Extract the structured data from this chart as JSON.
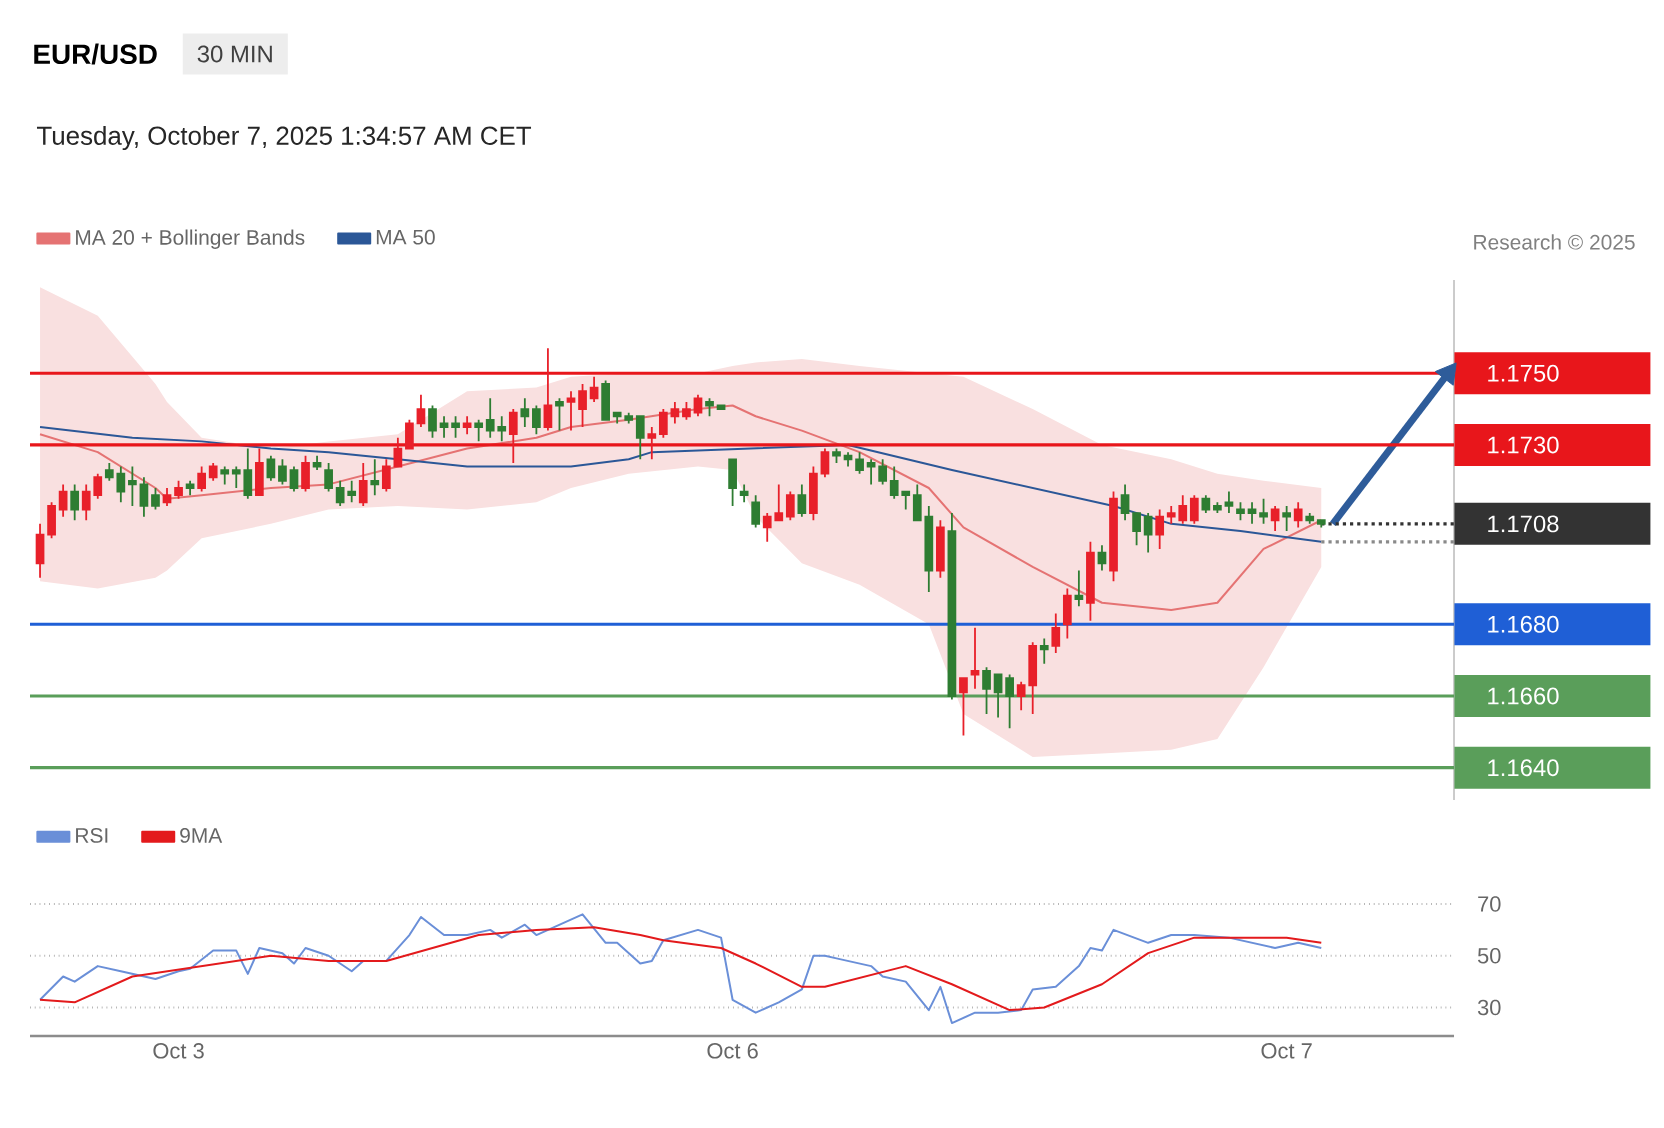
{
  "chart_data": [
    {
      "type": "candlestick",
      "title": "EUR/USD",
      "subtitle": "30 MIN",
      "annotations": [
        "Tuesday, October 7, 2025 1:34:57 AM CET",
        "Research © 2025"
      ],
      "categories": [
        null,
        null,
        null,
        null,
        null,
        null,
        null,
        null,
        null,
        null,
        null,
        null,
        null,
        null,
        null,
        null,
        null,
        null,
        null,
        null,
        null,
        null,
        null,
        null,
        null,
        null,
        null,
        null,
        null,
        null,
        null,
        null,
        null,
        null,
        null,
        null,
        null,
        null,
        null,
        null,
        null,
        null,
        null,
        null,
        null,
        null,
        null,
        null,
        null,
        null,
        null,
        null,
        null,
        null,
        null,
        null,
        null,
        null,
        null,
        null,
        null,
        null,
        null,
        null,
        null,
        null,
        null,
        null,
        null,
        null,
        null,
        null,
        null,
        null,
        null,
        null,
        null,
        null,
        null,
        null,
        null,
        null,
        null,
        null,
        null,
        null,
        null,
        null,
        null,
        null,
        null,
        null,
        null,
        null,
        null,
        null,
        null,
        null,
        null,
        null,
        null,
        null,
        null,
        null,
        null,
        null,
        null,
        null,
        null,
        null,
        null,
        null,
        null,
        null,
        null,
        null,
        null,
        null,
        null,
        null,
        null,
        null,
        null
      ],
      "ohlc": [
        [
          1.1697,
          1.1708,
          1.1693,
          1.1705
        ],
        [
          1.1705,
          1.1714,
          1.1704,
          1.1713
        ],
        [
          1.1712,
          1.1719,
          1.171,
          1.1717
        ],
        [
          1.1717,
          1.1719,
          1.1709,
          1.1712
        ],
        [
          1.1712,
          1.1719,
          1.1709,
          1.1717
        ],
        [
          1.1716,
          1.1722,
          1.1715,
          1.1721
        ],
        [
          1.1723,
          1.1725,
          1.172,
          1.1721
        ],
        [
          1.1722,
          1.1724,
          1.1714,
          1.1717
        ],
        [
          1.172,
          1.1724,
          1.1713,
          1.1719
        ],
        [
          1.1719,
          1.1721,
          1.171,
          1.1713
        ],
        [
          1.1716,
          1.1718,
          1.1712,
          1.1713
        ],
        [
          1.1714,
          1.1718,
          1.1713,
          1.1716
        ],
        [
          1.1716,
          1.172,
          1.1715,
          1.1718
        ],
        [
          1.1719,
          1.172,
          1.1716,
          1.1718
        ],
        [
          1.1718,
          1.1724,
          1.1717,
          1.1722
        ],
        [
          1.1721,
          1.1725,
          1.172,
          1.1724
        ],
        [
          1.1723,
          1.1724,
          1.1719,
          1.1722
        ],
        [
          1.1723,
          1.1724,
          1.1718,
          1.1722
        ],
        [
          1.1723,
          1.1729,
          1.1715,
          1.1716
        ],
        [
          1.1716,
          1.1729,
          1.1716,
          1.1725
        ],
        [
          1.1726,
          1.1727,
          1.172,
          1.1721
        ],
        [
          1.1724,
          1.1726,
          1.1719,
          1.172
        ],
        [
          1.1723,
          1.1724,
          1.1717,
          1.1718
        ],
        [
          1.1718,
          1.1727,
          1.1717,
          1.1725
        ],
        [
          1.1725,
          1.1727,
          1.1723,
          1.1724
        ],
        [
          1.1723,
          1.1725,
          1.1717,
          1.1718
        ],
        [
          1.1718,
          1.172,
          1.1713,
          1.1714
        ],
        [
          1.1717,
          1.172,
          1.1714,
          1.1716
        ],
        [
          1.1714,
          1.1725,
          1.1713,
          1.172
        ],
        [
          1.172,
          1.1726,
          1.1716,
          1.1719
        ],
        [
          1.1718,
          1.1726,
          1.1717,
          1.1724
        ],
        [
          1.1724,
          1.1732,
          1.1724,
          1.1729
        ],
        [
          1.1729,
          1.1737,
          1.1729,
          1.1736
        ],
        [
          1.1736,
          1.1744,
          1.1735,
          1.174
        ],
        [
          1.174,
          1.1741,
          1.1732,
          1.1734
        ],
        [
          1.1736,
          1.1738,
          1.1732,
          1.1735
        ],
        [
          1.1736,
          1.1738,
          1.1732,
          1.1735
        ],
        [
          1.1735,
          1.1738,
          1.1733,
          1.1736
        ],
        [
          1.1736,
          1.1737,
          1.1731,
          1.1735
        ],
        [
          1.1737,
          1.1743,
          1.1732,
          1.1734
        ],
        [
          1.1735,
          1.1738,
          1.1731,
          1.1734
        ],
        [
          1.1733,
          1.174,
          1.1725,
          1.1739
        ],
        [
          1.174,
          1.1743,
          1.1735,
          1.1738
        ],
        [
          1.174,
          1.1741,
          1.1733,
          1.1735
        ],
        [
          1.1735,
          1.1757,
          1.1734,
          1.1741
        ],
        [
          1.1742,
          1.1743,
          1.1734,
          1.1741
        ],
        [
          1.1742,
          1.1745,
          1.1734,
          1.1743
        ],
        [
          1.174,
          1.1747,
          1.1735,
          1.1745
        ],
        [
          1.1743,
          1.1749,
          1.1742,
          1.1746
        ],
        [
          1.1747,
          1.1748,
          1.1737,
          1.1737
        ],
        [
          1.1739,
          1.1739,
          1.1736,
          1.1738
        ],
        [
          1.1738,
          1.1739,
          1.1736,
          1.1737
        ],
        [
          1.1738,
          1.1738,
          1.1726,
          1.1732
        ],
        [
          1.1732,
          1.1735,
          1.1726,
          1.1733
        ],
        [
          1.1733,
          1.174,
          1.1732,
          1.1739
        ],
        [
          1.1738,
          1.1742,
          1.1736,
          1.174
        ],
        [
          1.1738,
          1.1742,
          1.1737,
          1.174
        ],
        [
          1.1739,
          1.1744,
          1.1738,
          1.1743
        ],
        [
          1.1742,
          1.1743,
          1.1738,
          1.1741
        ],
        [
          1.1741,
          1.1741,
          1.174,
          1.174
        ],
        [
          1.1726,
          1.1726,
          1.1713,
          1.1718
        ],
        [
          1.1717,
          1.1719,
          1.1714,
          1.1716
        ],
        [
          1.1714,
          1.1716,
          1.1707,
          1.1708
        ],
        [
          1.1707,
          1.1711,
          1.1703,
          1.171
        ],
        [
          1.1709,
          1.1719,
          1.1709,
          1.1711
        ],
        [
          1.171,
          1.1717,
          1.1709,
          1.1716
        ],
        [
          1.1716,
          1.1719,
          1.171,
          1.1711
        ],
        [
          1.1711,
          1.1724,
          1.1709,
          1.1722
        ],
        [
          1.1722,
          1.1729,
          1.1721,
          1.1728
        ],
        [
          1.1728,
          1.1729,
          1.1725,
          1.1727
        ],
        [
          1.1727,
          1.1728,
          1.1724,
          1.1726
        ],
        [
          1.1726,
          1.1728,
          1.1722,
          1.1723
        ],
        [
          1.1725,
          1.1726,
          1.1719,
          1.1724
        ],
        [
          1.1724,
          1.1726,
          1.1719,
          1.172
        ],
        [
          1.172,
          1.1724,
          1.1715,
          1.1716
        ],
        [
          1.1717,
          1.1717,
          1.1712,
          1.1716
        ],
        [
          1.1716,
          1.1719,
          1.1709,
          1.1709
        ],
        [
          1.171,
          1.1713,
          1.1689,
          1.1695
        ],
        [
          1.1695,
          1.1709,
          1.1693,
          1.1707
        ],
        [
          1.1706,
          1.1711,
          1.1659,
          1.166
        ],
        [
          1.1661,
          1.1665,
          1.1649,
          1.1665
        ],
        [
          1.1666,
          1.1679,
          1.1662,
          1.1667
        ],
        [
          1.1667,
          1.1668,
          1.1655,
          1.1662
        ],
        [
          1.1666,
          1.1666,
          1.1654,
          1.1661
        ],
        [
          1.1665,
          1.1666,
          1.1651,
          1.166
        ],
        [
          1.166,
          1.1664,
          1.1656,
          1.1663
        ],
        [
          1.1663,
          1.1675,
          1.1655,
          1.1674
        ],
        [
          1.1674,
          1.1676,
          1.1669,
          1.1673
        ],
        [
          1.1674,
          1.1683,
          1.1672,
          1.1679
        ],
        [
          1.168,
          1.169,
          1.1676,
          1.1688
        ],
        [
          1.1688,
          1.1695,
          1.1685,
          1.1687
        ],
        [
          1.1686,
          1.1703,
          1.1681,
          1.17
        ],
        [
          1.17,
          1.1702,
          1.1695,
          1.1697
        ],
        [
          1.1695,
          1.1717,
          1.1692,
          1.1715
        ],
        [
          1.1716,
          1.1719,
          1.1709,
          1.1711
        ],
        [
          1.1711,
          1.1711,
          1.1702,
          1.1706
        ],
        [
          1.171,
          1.1711,
          1.17,
          1.1705
        ],
        [
          1.1705,
          1.1712,
          1.1701,
          1.171
        ],
        [
          1.171,
          1.1713,
          1.1708,
          1.1711
        ],
        [
          1.1709,
          1.1716,
          1.1708,
          1.1713
        ],
        [
          1.1709,
          1.1716,
          1.1708,
          1.1715
        ],
        [
          1.1715,
          1.1716,
          1.1711,
          1.1712
        ],
        [
          1.1713,
          1.1714,
          1.1711,
          1.1712
        ],
        [
          1.1714,
          1.1717,
          1.1711,
          1.1713
        ],
        [
          1.1712,
          1.1714,
          1.1709,
          1.1711
        ],
        [
          1.1712,
          1.1714,
          1.1708,
          1.1711
        ],
        [
          1.1711,
          1.1715,
          1.1708,
          1.171
        ],
        [
          1.1709,
          1.1713,
          1.1706,
          1.1712
        ],
        [
          1.1711,
          1.1713,
          1.1706,
          1.171
        ],
        [
          1.1709,
          1.1714,
          1.1707,
          1.1712
        ],
        [
          1.171,
          1.1711,
          1.1708,
          1.1709
        ],
        [
          1.1709,
          1.1709,
          1.1707,
          1.1708
        ],
        null,
        null,
        null,
        null,
        null,
        null,
        null,
        null,
        null,
        null,
        null
      ],
      "colors": [
        "#e8202a",
        "#e8202a",
        "#e8202a",
        "#2e7d32",
        "#e8202a",
        "#e8202a",
        "#2e7d32",
        "#2e7d32",
        "#2e7d32",
        "#2e7d32",
        "#2e7d32",
        "#e8202a",
        "#e8202a",
        "#2e7d32",
        "#e8202a",
        "#e8202a",
        "#2e7d32",
        "#2e7d32",
        "#2e7d32",
        "#e8202a",
        "#2e7d32",
        "#2e7d32",
        "#2e7d32",
        "#e8202a",
        "#2e7d32",
        "#2e7d32",
        "#2e7d32",
        "#2e7d32",
        "#e8202a",
        "#2e7d32",
        "#e8202a",
        "#e8202a",
        "#e8202a",
        "#e8202a",
        "#2e7d32",
        "#2e7d32",
        "#2e7d32",
        "#e8202a",
        "#2e7d32",
        "#2e7d32",
        "#2e7d32",
        "#e8202a",
        "#2e7d32",
        "#2e7d32",
        "#e8202a",
        "#2e7d32",
        "#e8202a",
        "#e8202a",
        "#e8202a",
        "#2e7d32",
        "#2e7d32",
        "#2e7d32",
        "#2e7d32",
        "#e8202a",
        "#e8202a",
        "#e8202a",
        "#e8202a",
        "#e8202a",
        "#2e7d32",
        "#2e7d32",
        "#2e7d32",
        "#2e7d32",
        "#2e7d32",
        "#e8202a",
        "#e8202a",
        "#e8202a",
        "#2e7d32",
        "#e8202a",
        "#e8202a",
        "#2e7d32",
        "#2e7d32",
        "#2e7d32",
        "#2e7d32",
        "#2e7d32",
        "#2e7d32",
        "#2e7d32",
        "#2e7d32",
        "#2e7d32",
        "#e8202a",
        "#2e7d32",
        "#e8202a",
        "#e8202a",
        "#2e7d32",
        "#2e7d32",
        "#2e7d32",
        "#e8202a",
        "#e8202a",
        "#2e7d32",
        "#e8202a",
        "#e8202a",
        "#2e7d32",
        "#e8202a",
        "#2e7d32",
        "#e8202a",
        "#2e7d32",
        "#2e7d32",
        "#2e7d32",
        "#e8202a",
        "#e8202a",
        "#e8202a",
        "#e8202a",
        "#2e7d32",
        "#2e7d32",
        "#2e7d32",
        "#2e7d32",
        "#2e7d32",
        "#2e7d32",
        "#e8202a",
        "#2e7d32",
        "#e8202a",
        "#2e7d32",
        "#2e7d32",
        null,
        null,
        null,
        null,
        null,
        null,
        null,
        null,
        null,
        null,
        null
      ],
      "series": [
        {
          "name": "MA 20 + Bollinger Bands",
          "type": "line",
          "color": "#e57373",
          "values": [
            1.1733,
            null,
            null,
            null,
            null,
            1.1728,
            null,
            null,
            null,
            null,
            1.1718,
            1.1715,
            null,
            null,
            1.1716,
            null,
            null,
            null,
            null,
            null,
            1.1718,
            null,
            null,
            null,
            null,
            1.1719,
            null,
            null,
            null,
            null,
            null,
            1.1724,
            null,
            null,
            null,
            null,
            null,
            1.1729,
            null,
            null,
            null,
            null,
            null,
            1.1732,
            null,
            null,
            1.1735,
            null,
            null,
            null,
            null,
            1.1737,
            null,
            null,
            null,
            null,
            null,
            1.174,
            null,
            null,
            1.1741,
            null,
            1.1738,
            null,
            null,
            null,
            1.1734,
            null,
            null,
            null,
            null,
            1.1728,
            null,
            null,
            null,
            null,
            null,
            1.1718,
            null,
            null,
            1.1707,
            null,
            null,
            null,
            null,
            null,
            1.1696,
            null,
            null,
            null,
            null,
            null,
            1.1686,
            null,
            null,
            null,
            null,
            null,
            1.1684,
            null,
            null,
            null,
            1.1686,
            null,
            null,
            null,
            1.1701,
            null,
            null,
            null,
            null,
            1.1709,
            null,
            null,
            null,
            null,
            null,
            null,
            null,
            null,
            null,
            null,
            null
          ],
          "upper": [
            1.1774,
            null,
            null,
            null,
            null,
            1.1766,
            null,
            null,
            null,
            null,
            1.1747,
            1.1742,
            null,
            null,
            1.1732,
            null,
            null,
            null,
            null,
            null,
            1.1729,
            null,
            null,
            null,
            null,
            1.1731,
            null,
            null,
            null,
            null,
            null,
            1.1733,
            null,
            null,
            null,
            null,
            null,
            1.1745,
            null,
            null,
            null,
            null,
            null,
            1.1746,
            null,
            null,
            1.1749,
            null,
            null,
            null,
            null,
            1.175,
            null,
            null,
            null,
            null,
            null,
            1.175,
            null,
            null,
            1.1752,
            null,
            1.1753,
            null,
            null,
            null,
            1.1754,
            null,
            null,
            null,
            null,
            1.1752,
            null,
            null,
            null,
            null,
            null,
            1.175,
            null,
            null,
            1.1749,
            null,
            null,
            null,
            null,
            null,
            1.174,
            null,
            null,
            null,
            null,
            null,
            1.173,
            null,
            null,
            null,
            null,
            null,
            1.1726,
            null,
            null,
            null,
            1.1722,
            null,
            null,
            null,
            1.172,
            null,
            null,
            null,
            null,
            1.1718,
            null,
            null,
            null,
            null,
            null,
            null,
            null,
            null,
            null,
            null,
            null
          ],
          "lower": [
            1.1692,
            null,
            null,
            null,
            null,
            1.169,
            null,
            null,
            null,
            null,
            1.1693,
            1.1695,
            null,
            null,
            1.1704,
            null,
            null,
            null,
            null,
            null,
            1.1708,
            null,
            null,
            null,
            null,
            1.1712,
            null,
            null,
            null,
            null,
            null,
            1.1713,
            null,
            null,
            null,
            null,
            null,
            1.1712,
            null,
            null,
            null,
            null,
            null,
            1.1714,
            null,
            null,
            1.1718,
            null,
            null,
            null,
            null,
            1.1722,
            null,
            null,
            null,
            null,
            null,
            1.1724,
            null,
            null,
            1.1723,
            null,
            1.171,
            null,
            null,
            null,
            1.1697,
            null,
            null,
            null,
            null,
            1.1691,
            null,
            null,
            null,
            null,
            null,
            1.168,
            null,
            null,
            1.1655,
            null,
            null,
            null,
            null,
            null,
            1.1643,
            null,
            null,
            null,
            null,
            null,
            1.1644,
            null,
            null,
            null,
            null,
            null,
            1.1645,
            null,
            null,
            null,
            1.1648,
            null,
            null,
            null,
            1.1668,
            null,
            null,
            null,
            null,
            1.1696,
            null,
            null,
            null,
            null,
            null,
            null,
            null,
            null,
            null,
            null,
            null
          ]
        },
        {
          "name": "MA 50",
          "type": "line",
          "color": "#2b5797",
          "values": [
            1.1735,
            null,
            null,
            null,
            null,
            null,
            null,
            null,
            1.1732,
            null,
            null,
            null,
            null,
            null,
            1.1731,
            null,
            null,
            null,
            null,
            null,
            1.1729,
            null,
            null,
            null,
            null,
            1.1728,
            null,
            null,
            null,
            null,
            null,
            1.1726,
            null,
            null,
            null,
            null,
            null,
            1.1724,
            null,
            null,
            null,
            null,
            null,
            1.1724,
            null,
            null,
            1.1724,
            null,
            null,
            null,
            null,
            1.1726,
            null,
            1.1728,
            null,
            null,
            null,
            null,
            null,
            null,
            null,
            null,
            null,
            null,
            null,
            null,
            null,
            null,
            null,
            null,
            1.173,
            null,
            null,
            null,
            null,
            null,
            null,
            null,
            null,
            1.1723,
            null,
            null,
            null,
            null,
            null,
            null,
            1.1718,
            null,
            null,
            null,
            null,
            null,
            null,
            1.1713,
            null,
            null,
            null,
            null,
            1.1708,
            null,
            null,
            null,
            null,
            null,
            1.1706,
            null,
            null,
            null,
            null,
            null,
            null,
            1.1703,
            null,
            null,
            null,
            null,
            null,
            null,
            null,
            null,
            null,
            null,
            null
          ]
        },
        {
          "type": "line",
          "color": "#2e5c9a",
          "values": [
            null,
            null,
            null,
            null,
            null,
            null,
            null,
            null,
            null,
            null,
            null,
            null,
            null,
            null,
            null,
            null,
            null,
            null,
            null,
            null,
            null,
            null,
            null,
            null,
            null,
            null,
            null,
            null,
            null,
            null,
            null,
            null,
            null,
            null,
            null,
            null,
            null,
            null,
            null,
            null,
            null,
            null,
            null,
            null,
            null,
            null,
            null,
            null,
            null,
            null,
            null,
            null,
            null,
            null,
            null,
            null,
            null,
            null,
            null,
            null,
            null,
            null,
            null,
            null,
            null,
            null,
            null,
            null,
            null,
            null,
            null,
            null,
            null,
            null,
            null,
            null,
            null,
            null,
            null,
            null,
            null,
            null,
            null,
            null,
            null,
            null,
            null,
            null,
            null,
            null,
            null,
            null,
            null,
            null,
            null,
            null,
            null,
            null,
            null,
            null,
            null,
            null,
            null,
            null,
            null,
            null,
            null,
            null,
            null,
            null,
            null,
            null,
            1.1708,
            null,
            null,
            null,
            null,
            null,
            null,
            null,
            null,
            null,
            1.175
          ]
        }
      ],
      "ref_lines": [
        {
          "axis": "y",
          "value": 1.175,
          "color": "#e8161b"
        },
        {
          "axis": "y",
          "value": 1.173,
          "color": "#e8161b"
        },
        {
          "axis": "y",
          "value": 1.1708,
          "color": "#333333",
          "line_style": "dotted"
        },
        {
          "axis": "y",
          "value": 1.1703,
          "color": "#8a8a8a",
          "line_style": "dotted"
        },
        {
          "axis": "y",
          "value": 1.168,
          "color": "#1f5fd6"
        },
        {
          "axis": "y",
          "value": 1.166,
          "color": "#5a9e5a"
        },
        {
          "axis": "y",
          "value": 1.164,
          "color": "#5a9e5a"
        }
      ],
      "ylim": [
        1.1631,
        1.1776
      ],
      "yticks": [
        {
          "value": 1.175,
          "label": "1.1750"
        },
        {
          "value": 1.173,
          "label": "1.1730"
        },
        {
          "value": 1.1708,
          "label": "1.1708"
        },
        {
          "value": 1.168,
          "label": "1.1680"
        },
        {
          "value": 1.166,
          "label": "1.1660"
        },
        {
          "value": 1.164,
          "label": "1.1640"
        }
      ],
      "legend": "top left",
      "tick_labels": "y"
    },
    {
      "type": "line",
      "categories": [
        null,
        null,
        null,
        null,
        null,
        null,
        null,
        null,
        null,
        null,
        null,
        null,
        "Oct 3",
        null,
        null,
        null,
        null,
        null,
        null,
        null,
        null,
        null,
        null,
        null,
        null,
        null,
        null,
        null,
        null,
        null,
        null,
        null,
        null,
        null,
        null,
        null,
        null,
        null,
        null,
        null,
        null,
        null,
        null,
        null,
        null,
        null,
        null,
        null,
        null,
        null,
        null,
        null,
        null,
        null,
        null,
        null,
        null,
        null,
        null,
        null,
        "Oct 6",
        null,
        null,
        null,
        null,
        null,
        null,
        null,
        null,
        null,
        null,
        null,
        null,
        null,
        null,
        null,
        null,
        null,
        null,
        null,
        null,
        null,
        null,
        null,
        null,
        null,
        null,
        null,
        null,
        null,
        null,
        null,
        null,
        null,
        null,
        null,
        null,
        null,
        null,
        null,
        null,
        null,
        null,
        null,
        null,
        null,
        null,
        null,
        "Oct 7",
        null,
        null,
        null,
        null,
        null,
        null,
        null,
        null,
        null,
        null,
        null,
        null,
        null,
        null
      ],
      "ylim": [
        19,
        70
      ],
      "yticks": [
        30,
        50,
        70
      ],
      "grid": "y",
      "legend": "top left",
      "series": [
        {
          "name": "RSI",
          "type": "line",
          "color": "#6a8fd8",
          "values": [
            33,
            null,
            42,
            40,
            null,
            46,
            null,
            44,
            null,
            null,
            41,
            null,
            44,
            45,
            null,
            52,
            null,
            52,
            43,
            53,
            null,
            51,
            47,
            53,
            null,
            50,
            null,
            44,
            48,
            null,
            48,
            null,
            58,
            65,
            null,
            58,
            null,
            58,
            null,
            60,
            57,
            null,
            62,
            58,
            null,
            62,
            null,
            66,
            null,
            55,
            55,
            null,
            47,
            48,
            56,
            null,
            null,
            60,
            null,
            57,
            33,
            null,
            28,
            null,
            32,
            null,
            37,
            50,
            50,
            49,
            null,
            null,
            46,
            42,
            null,
            40,
            null,
            29,
            38,
            24,
            null,
            28,
            null,
            28,
            null,
            29,
            37,
            null,
            38,
            null,
            46,
            53,
            52,
            60,
            null,
            null,
            55,
            null,
            58,
            null,
            58,
            null,
            null,
            57,
            null,
            null,
            null,
            53,
            null,
            55,
            null,
            53,
            null,
            null,
            null,
            null,
            null,
            null,
            null,
            null,
            null,
            null,
            null
          ]
        },
        {
          "name": "9MA",
          "type": "line",
          "color": "#e31a1c",
          "values": [
            33,
            null,
            null,
            32,
            null,
            null,
            null,
            null,
            42,
            null,
            null,
            null,
            null,
            null,
            46,
            null,
            null,
            null,
            null,
            null,
            50,
            null,
            null,
            null,
            null,
            48,
            null,
            null,
            null,
            null,
            48,
            null,
            null,
            null,
            53,
            null,
            null,
            null,
            58,
            null,
            null,
            null,
            null,
            60,
            null,
            null,
            null,
            null,
            61,
            null,
            null,
            null,
            58,
            null,
            56,
            null,
            null,
            null,
            null,
            53,
            null,
            null,
            47,
            null,
            null,
            null,
            38,
            null,
            38,
            null,
            null,
            null,
            null,
            null,
            null,
            46,
            null,
            null,
            null,
            39,
            null,
            null,
            null,
            null,
            29,
            null,
            null,
            30,
            null,
            null,
            null,
            null,
            39,
            null,
            null,
            null,
            51,
            null,
            null,
            null,
            57,
            null,
            null,
            null,
            null,
            57,
            null,
            null,
            57,
            null,
            null,
            55,
            null,
            null,
            null,
            null,
            null,
            null,
            null,
            null,
            null,
            null,
            null
          ]
        }
      ]
    }
  ]
}
